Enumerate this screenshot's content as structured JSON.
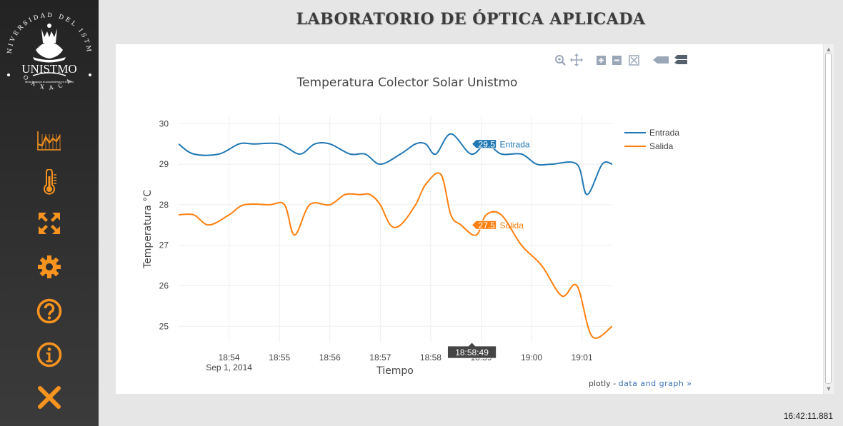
{
  "logo": {
    "ring_text": "UNIVERSIDAD DEL ISTMO",
    "bottom_text": "OAXACA",
    "name": "UNISTMO",
    "motto": "tierra de apoyo al conocimiento en el istmo"
  },
  "sidebar": {
    "items": [
      {
        "icon": "chart-icon",
        "label": "Gráficas"
      },
      {
        "icon": "thermometer-icon",
        "label": "Temperatura"
      },
      {
        "icon": "expand-icon",
        "label": "Pantalla completa"
      },
      {
        "icon": "gear-icon",
        "label": "Configuración"
      },
      {
        "icon": "help-icon",
        "label": "Ayuda"
      },
      {
        "icon": "info-icon",
        "label": "Información"
      },
      {
        "icon": "close-icon",
        "label": "Salir"
      }
    ],
    "accent": "#f7931e"
  },
  "header": {
    "title": "LABORATORIO DE ÓPTICA APLICADA"
  },
  "modebar": [
    "zoom",
    "pan",
    "zoom-in",
    "zoom-out",
    "autoscale",
    "hover-closest",
    "hover-compare"
  ],
  "chart_data": {
    "type": "line",
    "title": "Temperatura Colector Solar Unistmo",
    "xlabel": "Tiempo",
    "ylabel": "Temperatura °C",
    "x_ticks": [
      "18:54",
      "18:55",
      "18:56",
      "18:57",
      "18:58",
      "18:59",
      "19:00",
      "19:01"
    ],
    "x_date_label": "Sep 1, 2014",
    "ylim": [
      24.6,
      30.2
    ],
    "y_ticks": [
      25,
      26,
      27,
      28,
      29,
      30
    ],
    "xlim": [
      "18:53:00",
      "18:61:36"
    ],
    "grid": true,
    "legend_position": "top-right",
    "series": [
      {
        "name": "Entrada",
        "color": "#1f77b4",
        "x": [
          "18:53:00",
          "18:53:18",
          "18:53:48",
          "18:54:12",
          "18:54:30",
          "18:55:00",
          "18:55:24",
          "18:55:42",
          "18:56:00",
          "18:56:24",
          "18:56:42",
          "18:57:00",
          "18:57:24",
          "18:57:42",
          "18:57:54",
          "18:58:06",
          "18:58:24",
          "18:58:48",
          "18:59:06",
          "18:59:24",
          "18:59:48",
          "19:00:06",
          "19:00:24",
          "19:00:54",
          "19:01:06",
          "19:01:24",
          "19:01:36"
        ],
        "y": [
          29.5,
          29.25,
          29.25,
          29.5,
          29.5,
          29.5,
          29.25,
          29.5,
          29.5,
          29.25,
          29.25,
          29.0,
          29.25,
          29.5,
          29.5,
          29.25,
          29.75,
          29.25,
          29.5,
          29.25,
          29.25,
          29.0,
          29.0,
          29.0,
          28.25,
          29.0,
          29.0
        ]
      },
      {
        "name": "Salida",
        "color": "#ff7f0e",
        "x": [
          "18:53:00",
          "18:53:18",
          "18:53:36",
          "18:54:00",
          "18:54:18",
          "18:54:48",
          "18:55:06",
          "18:55:18",
          "18:55:36",
          "18:56:00",
          "18:56:18",
          "18:56:36",
          "18:56:48",
          "18:57:00",
          "18:57:12",
          "18:57:24",
          "18:57:42",
          "18:57:54",
          "18:58:12",
          "18:58:24",
          "18:58:36",
          "18:58:54",
          "18:59:06",
          "18:59:24",
          "18:59:48",
          "19:00:12",
          "19:00:36",
          "19:00:54",
          "19:01:12",
          "19:01:36"
        ],
        "y": [
          27.75,
          27.75,
          27.5,
          27.75,
          28.0,
          28.0,
          28.0,
          27.25,
          28.0,
          28.0,
          28.25,
          28.25,
          28.25,
          28.0,
          27.5,
          27.5,
          28.0,
          28.5,
          28.75,
          27.75,
          27.5,
          27.25,
          27.75,
          27.75,
          27.0,
          26.5,
          25.75,
          26.0,
          24.75,
          25.0
        ]
      }
    ],
    "hover": {
      "x_label": "18:58:49",
      "values": [
        {
          "series": "Entrada",
          "value": "29.5"
        },
        {
          "series": "Salida",
          "value": "27.5"
        }
      ]
    }
  },
  "credit": {
    "prefix": "plotly - ",
    "link": "data and graph »"
  },
  "status": {
    "clock": "16:42:11.881"
  }
}
